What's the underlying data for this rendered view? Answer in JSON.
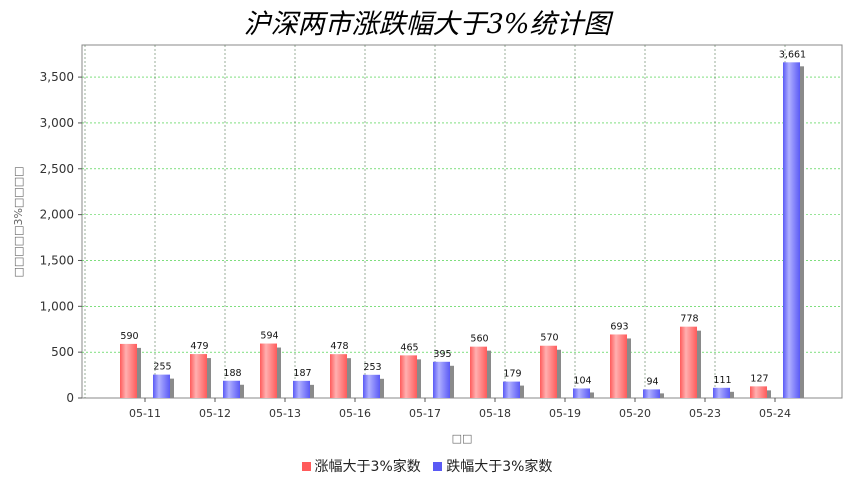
{
  "title": "沪深两市涨跌幅大于3%统计图",
  "chart_data": {
    "type": "bar",
    "title": "沪深两市涨跌幅大于3%统计图",
    "xlabel": "□□",
    "ylabel": "□□□□□3%□□□□",
    "categories": [
      "05-11",
      "05-12",
      "05-13",
      "05-16",
      "05-17",
      "05-18",
      "05-19",
      "05-20",
      "05-23",
      "05-24"
    ],
    "series": [
      {
        "name": "涨幅大于3%家数",
        "color": "#ff5b5b",
        "values": [
          590,
          479,
          594,
          478,
          465,
          560,
          570,
          693,
          778,
          127
        ]
      },
      {
        "name": "跌幅大于3%家数",
        "color": "#5a5af5",
        "values": [
          255,
          188,
          187,
          253,
          395,
          179,
          104,
          94,
          111,
          3661
        ]
      }
    ],
    "ylim": [
      0,
      3850
    ],
    "yticks": [
      0,
      500,
      1000,
      1500,
      2000,
      2500,
      3000,
      3500
    ],
    "ytick_labels": [
      "0",
      "500",
      "1,000",
      "1,500",
      "2,000",
      "2,500",
      "3,000",
      "3,500"
    ],
    "bar_labels": [
      [
        "590",
        "479",
        "594",
        "478",
        "465",
        "560",
        "570",
        "693",
        "778",
        "127"
      ],
      [
        "255",
        "188",
        "187",
        "253",
        "395",
        "179",
        "104",
        "94",
        "111",
        "3,661"
      ]
    ],
    "grid": true,
    "legend": "bottom-center"
  }
}
